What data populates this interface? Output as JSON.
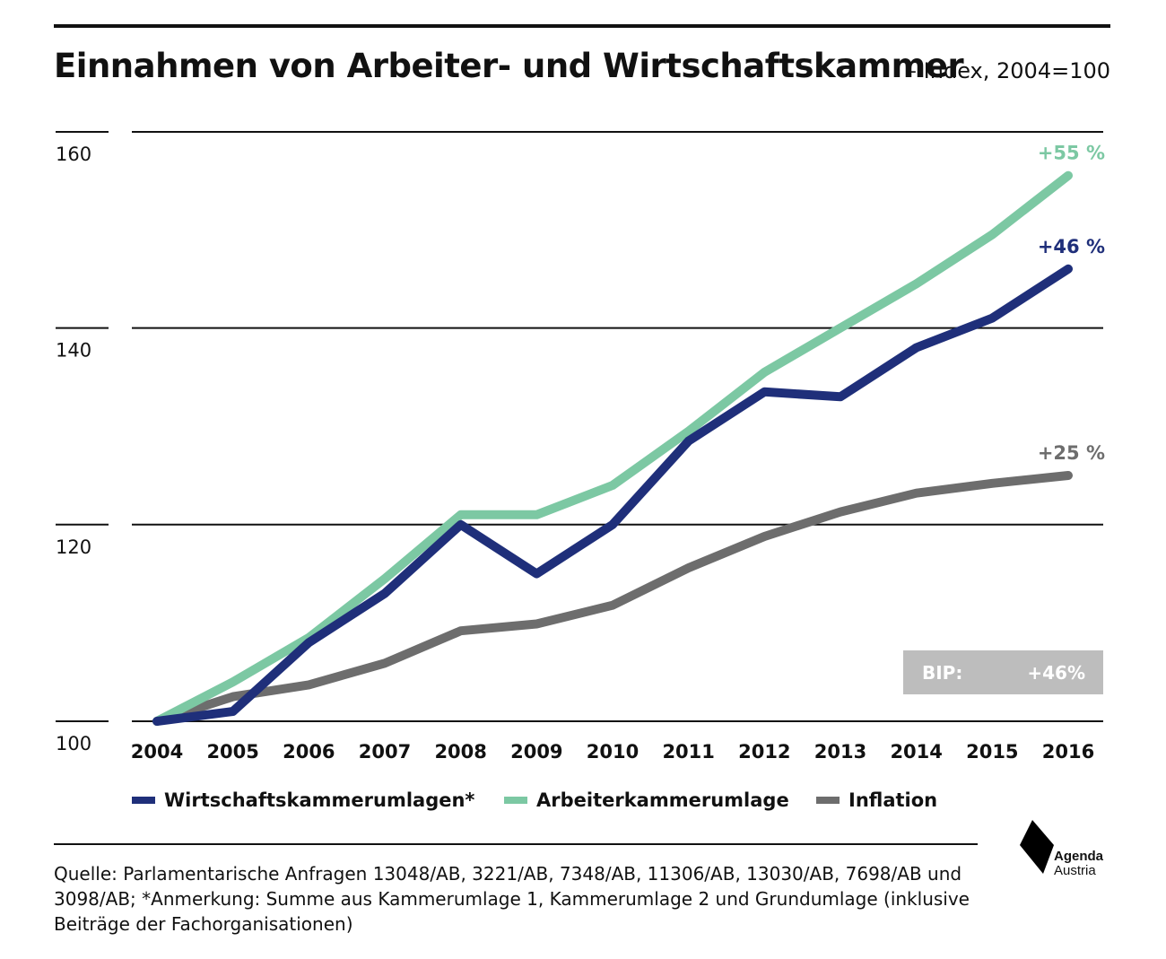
{
  "header": {
    "title": "Einnahmen von Arbeiter- und Wirtschaftskammer",
    "subtitle": "– Index, 2004=100"
  },
  "chart_data": {
    "type": "line",
    "categories": [
      "2004",
      "2005",
      "2006",
      "2007",
      "2008",
      "2009",
      "2010",
      "2011",
      "2012",
      "2013",
      "2014",
      "2015",
      "2016"
    ],
    "series": [
      {
        "name": "Wirtschaftskammerumlagen*",
        "color": "#1f2f7a",
        "values": [
          100,
          101,
          108,
          113,
          120,
          115,
          120,
          128.5,
          133.5,
          133,
          138,
          141,
          146
        ],
        "end_label": "+46 %"
      },
      {
        "name": "Arbeiterkammerumlage",
        "color": "#7cc8a3",
        "values": [
          100,
          104,
          108.5,
          114.5,
          121,
          121,
          124,
          129.5,
          135.5,
          140,
          144.5,
          149.5,
          155.5
        ],
        "end_label": "+55 %"
      },
      {
        "name": "Inflation",
        "color": "#6d6d6d",
        "values": [
          100,
          102.5,
          103.7,
          105.9,
          109.2,
          109.9,
          111.8,
          115.6,
          118.8,
          121.3,
          123.2,
          124.2,
          125
        ],
        "end_label": "+25 %"
      }
    ],
    "y_ticks": [
      100,
      120,
      140,
      160
    ],
    "ylim": [
      100,
      162
    ],
    "grid": true,
    "annotation": {
      "label": "BIP:",
      "value": "+46%"
    }
  },
  "source": {
    "text": "Quelle:  Parlamentarische Anfragen 13048/AB, 3221/AB, 7348/AB, 11306/AB, 13030/AB, 7698/AB und 3098/AB;  *Anmerkung: Summe aus Kammerumlage 1, Kammerumlage 2 und Grundumlage (inklusive Beiträge der Fachorganisationen)"
  },
  "logo": {
    "line1": "Agenda",
    "line2": "Austria"
  }
}
